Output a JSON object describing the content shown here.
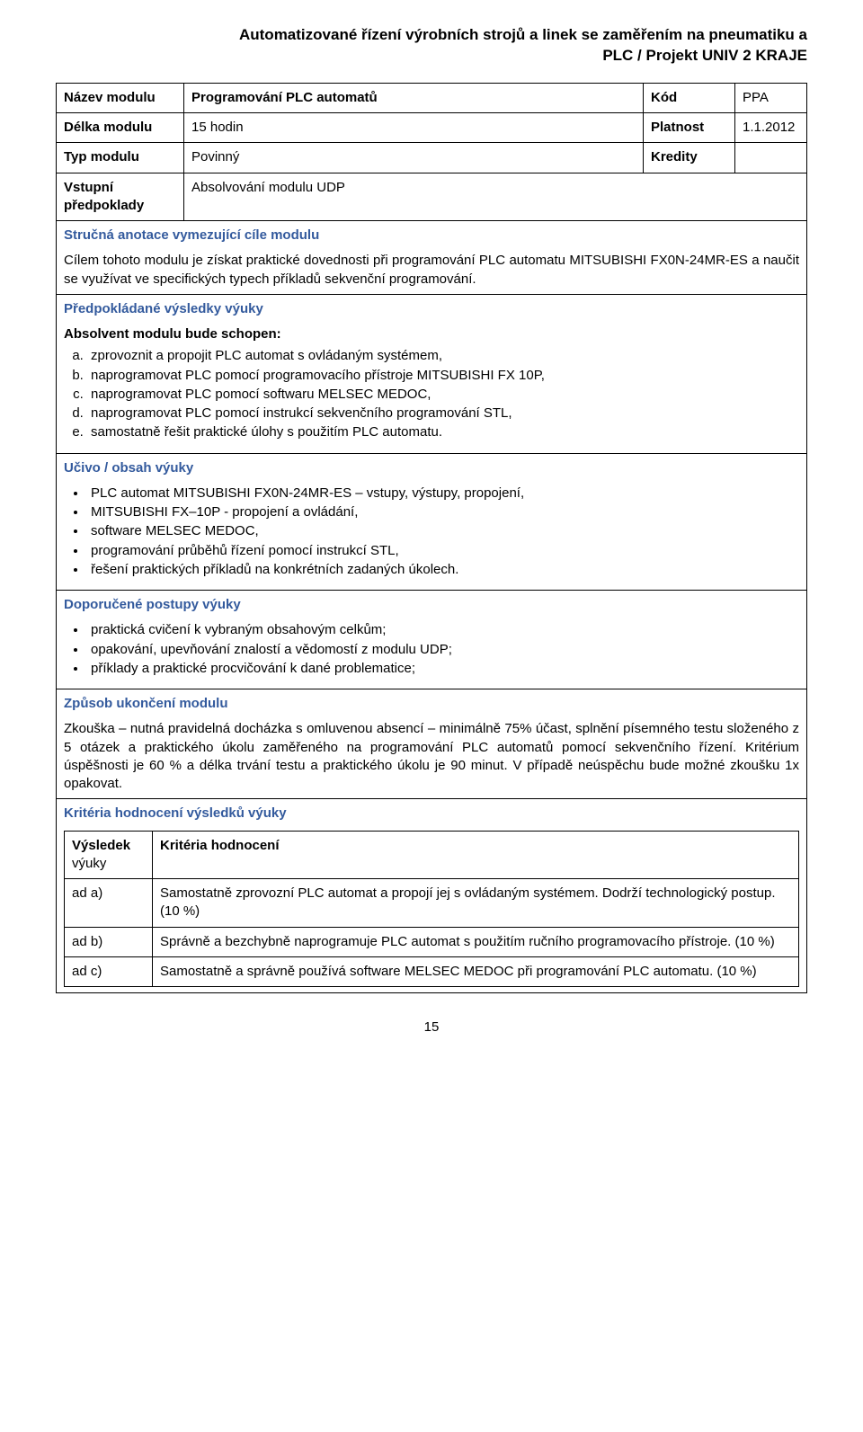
{
  "header": {
    "line1": "Automatizované řízení výrobních strojů a linek se zaměřením na pneumatiku a",
    "line2": "PLC / Projekt UNIV 2 KRAJE"
  },
  "meta": {
    "row1": {
      "label": "Název modulu",
      "value": "Programování PLC automatů",
      "col3_label": "Kód",
      "col3_value": "PPA"
    },
    "row2": {
      "label": "Délka modulu",
      "value": "15 hodin",
      "col3_label": "Platnost",
      "col3_value": "1.1.2012"
    },
    "row3": {
      "label": "Typ modulu",
      "value": "Povinný",
      "col3_label": "Kredity",
      "col3_value": ""
    },
    "row4": {
      "label": "Vstupní předpoklady",
      "value": "Absolvování modulu UDP"
    }
  },
  "sections": {
    "anot_title": "Stručná anotace vymezující cíle modulu",
    "anot_text": "Cílem tohoto modulu je získat praktické dovednosti při programování PLC automatu MITSUBISHI FX0N-24MR-ES a naučit se využívat ve specifických typech příkladů sekvenční programování.",
    "results_title": "Předpokládané výsledky výuky",
    "results_intro": "Absolvent modulu bude schopen:",
    "results_items": [
      "zprovoznit a propojit PLC automat s ovládaným systémem,",
      "naprogramovat PLC pomocí programovacího přístroje MITSUBISHI FX 10P,",
      "naprogramovat PLC pomocí softwaru MELSEC MEDOC,",
      "naprogramovat PLC pomocí instrukcí sekvenčního programování STL,",
      "samostatně řešit praktické úlohy s použitím PLC automatu."
    ],
    "content_title": "Učivo / obsah výuky",
    "content_items": [
      "PLC automat MITSUBISHI FX0N-24MR-ES – vstupy, výstupy, propojení,",
      "MITSUBISHI FX–10P  - propojení a ovládání,",
      "software MELSEC MEDOC,",
      "programování průběhů řízení pomocí instrukcí STL,",
      "řešení praktických příkladů na konkrétních zadaných úkolech."
    ],
    "methods_title": "Doporučené postupy výuky",
    "methods_items": [
      "praktická cvičení k vybraným obsahovým celkům;",
      "opakování, upevňování znalostí a vědomostí z modulu UDP;",
      "příklady a praktické procvičování k dané problematice;"
    ],
    "completion_title": "Způsob ukončení modulu",
    "completion_text": "Zkouška – nutná pravidelná docházka s omluvenou absencí – minimálně 75% účast, splnění písemného testu složeného z 5 otázek a praktického úkolu zaměřeného na programování PLC automatů pomocí sekvenčního řízení. Kritérium úspěšnosti je 60 % a délka trvání testu a praktického úkolu je 90 minut. V případě neúspěchu bude možné zkoušku 1x opakovat.",
    "criteria_title": "Kritéria hodnocení výsledků výuky",
    "criteria_table": {
      "col1_header_l1": "Výsledek",
      "col1_header_l2": "výuky",
      "col2_header": "Kritéria hodnocení",
      "rows": [
        {
          "label": "ad a)",
          "text": "Samostatně zprovozní PLC automat a propojí jej s ovládaným systémem. Dodrží technologický postup. (10 %)"
        },
        {
          "label": "ad b)",
          "text": "Správně a bezchybně naprogramuje PLC automat s použitím ručního programovacího přístroje. (10 %)"
        },
        {
          "label": "ad c)",
          "text": "Samostatně a správně používá software MELSEC MEDOC při programování PLC automatu. (10 %)"
        }
      ]
    }
  },
  "page_number": "15"
}
